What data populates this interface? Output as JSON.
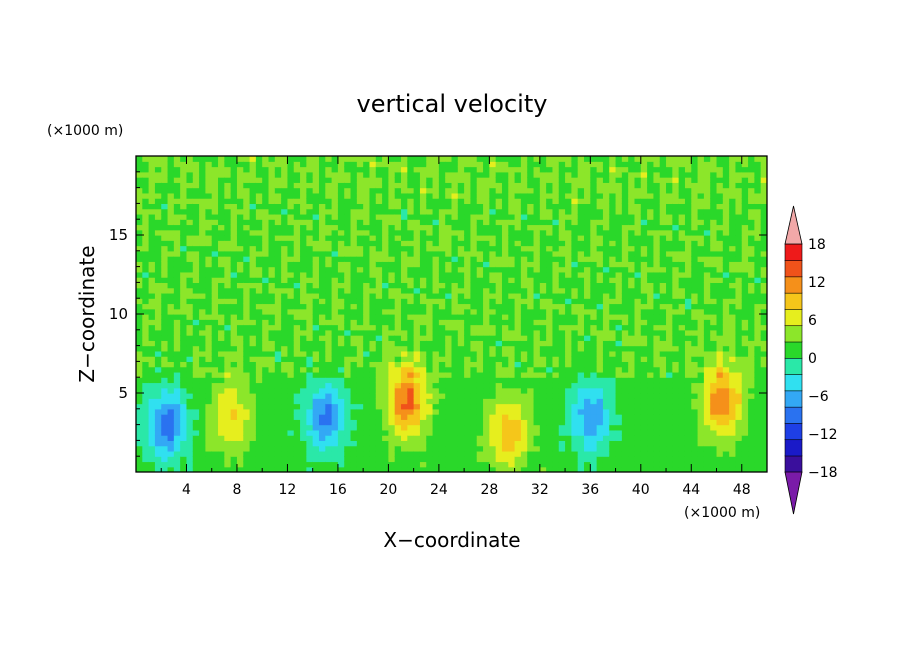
{
  "chart_data": {
    "type": "heatmap",
    "title": "vertical velocity",
    "xlabel": "X−coordinate",
    "ylabel": "Z−coordinate",
    "x_unit": "(×1000 m)",
    "y_unit": "(×1000 m)",
    "xlim": [
      0,
      50
    ],
    "ylim": [
      0,
      20
    ],
    "x_ticks": [
      4,
      8,
      12,
      16,
      20,
      24,
      28,
      32,
      36,
      40,
      44,
      48
    ],
    "y_ticks": [
      5,
      10,
      15
    ],
    "colorbar": {
      "ticks": [
        18,
        12,
        6,
        0,
        -6,
        -12,
        -18
      ],
      "levels": [
        -21,
        -18,
        -15,
        -12,
        -9,
        -6,
        -3,
        0,
        3,
        6,
        9,
        12,
        15,
        18,
        21
      ],
      "colors": [
        "#7a1ba8",
        "#3a0f9c",
        "#1a1ac8",
        "#1e3fe6",
        "#2a72f0",
        "#33a8f5",
        "#30e0f0",
        "#2ae8a8",
        "#2ad82a",
        "#8ce62a",
        "#e6ee1e",
        "#f5c61a",
        "#f5901a",
        "#f0521a",
        "#ee1a1a",
        "#f2a8a8"
      ],
      "grid": false
    },
    "features": [
      {
        "x": 2.5,
        "z": 3.0,
        "value": -12
      },
      {
        "x": 7.5,
        "z": 3.5,
        "value": 8
      },
      {
        "x": 15.0,
        "z": 3.5,
        "value": -11
      },
      {
        "x": 21.5,
        "z": 4.5,
        "value": 14
      },
      {
        "x": 29.5,
        "z": 2.5,
        "value": 10
      },
      {
        "x": 36.0,
        "z": 3.5,
        "value": -10
      },
      {
        "x": 46.5,
        "z": 4.5,
        "value": 13
      }
    ]
  }
}
